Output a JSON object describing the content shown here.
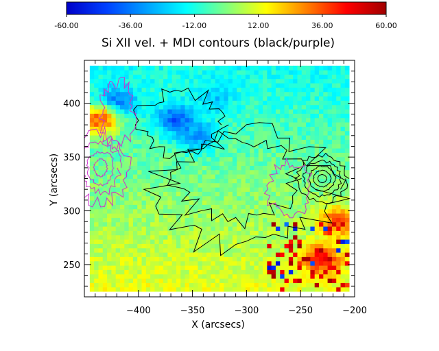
{
  "chart_data": {
    "type": "heatmap",
    "title": "Si XII vel. + MDI contours (black/purple)",
    "xlabel": "X (arcsecs)",
    "ylabel": "Y (arcsecs)",
    "xlim": [
      -450,
      -200
    ],
    "ylim": [
      220,
      440
    ],
    "x_ticks": [
      -400,
      -350,
      -300,
      -250,
      -200
    ],
    "y_ticks": [
      250,
      300,
      350,
      400
    ],
    "x_tick_labels": [
      "−400",
      "−350",
      "−300",
      "−250",
      "−200"
    ],
    "y_tick_labels": [
      "250",
      "300",
      "350",
      "400"
    ],
    "colorbar": {
      "range": [
        -60,
        60
      ],
      "ticks": [
        -60,
        -36,
        -12,
        12,
        36,
        60
      ],
      "tick_labels": [
        "-60.00",
        "-36.00",
        "-12.00",
        "12.00",
        "36.00",
        "60.00"
      ]
    },
    "grid": false,
    "legend": "none",
    "data_extent": {
      "x": [
        -445,
        -205
      ],
      "y": [
        225,
        435
      ]
    },
    "notes_features": [
      {
        "kind": "blueshift",
        "x": -420,
        "y": 400,
        "value": -45
      },
      {
        "kind": "blueshift",
        "x": -365,
        "y": 385,
        "value": -45
      },
      {
        "kind": "blueshift",
        "x": -345,
        "y": 370,
        "value": -35
      },
      {
        "kind": "blueshift",
        "x": -330,
        "y": 405,
        "value": -25
      },
      {
        "kind": "redshift",
        "x": -435,
        "y": 385,
        "value": 40
      },
      {
        "kind": "redshift",
        "x": -230,
        "y": 255,
        "value": 50
      },
      {
        "kind": "redshift",
        "x": -215,
        "y": 290,
        "value": 40
      }
    ],
    "contours_black_center": {
      "x": -230,
      "y": 330
    },
    "contours_purple_center": {
      "x": -435,
      "y": 340
    }
  },
  "colors": {
    "colormap": [
      "#0000c8",
      "#0040ff",
      "#00a0ff",
      "#00ffff",
      "#80ff80",
      "#ffff00",
      "#ff8000",
      "#ff0000",
      "#a00000"
    ],
    "contour_black": "#000000",
    "contour_purple": "#cc33cc"
  }
}
